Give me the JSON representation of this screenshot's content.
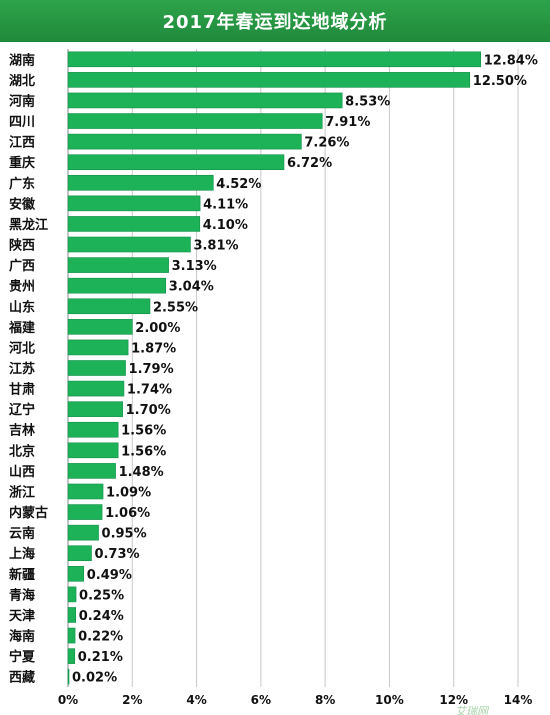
{
  "chart_data": {
    "type": "bar",
    "orientation": "horizontal",
    "title": "2017年春运到达地域分析",
    "categories": [
      "湖南",
      "湖北",
      "河南",
      "四川",
      "江西",
      "重庆",
      "广东",
      "安徽",
      "黑龙江",
      "陕西",
      "广西",
      "贵州",
      "山东",
      "福建",
      "河北",
      "江苏",
      "甘肃",
      "辽宁",
      "吉林",
      "北京",
      "山西",
      "浙江",
      "内蒙古",
      "云南",
      "上海",
      "新疆",
      "青海",
      "天津",
      "海南",
      "宁夏",
      "西藏"
    ],
    "values": [
      12.84,
      12.5,
      8.53,
      7.91,
      7.26,
      6.72,
      4.52,
      4.11,
      4.1,
      3.81,
      3.13,
      3.04,
      2.55,
      2.0,
      1.87,
      1.79,
      1.74,
      1.7,
      1.56,
      1.56,
      1.48,
      1.09,
      1.06,
      0.95,
      0.73,
      0.49,
      0.25,
      0.24,
      0.22,
      0.21,
      0.02
    ],
    "value_labels": [
      "12.84%",
      "12.50%",
      "8.53%",
      "7.91%",
      "7.26%",
      "6.72%",
      "4.52%",
      "4.11%",
      "4.10%",
      "3.81%",
      "3.13%",
      "3.04%",
      "2.55%",
      "2.00%",
      "1.87%",
      "1.79%",
      "1.74%",
      "1.70%",
      "1.56%",
      "1.56%",
      "1.48%",
      "1.09%",
      "1.06%",
      "0.95%",
      "0.73%",
      "0.49%",
      "0.25%",
      "0.24%",
      "0.22%",
      "0.21%",
      "0.02%"
    ],
    "xlim": [
      0,
      14
    ],
    "xticks": [
      "0%",
      "2%",
      "4%",
      "6%",
      "8%",
      "10%",
      "12%",
      "14%"
    ],
    "xlabel": "",
    "ylabel": "",
    "grid": true,
    "colors": {
      "bar": "#1db257",
      "bar_edge": "#12904a",
      "title_bg": "#2a9d45",
      "grid": "#c8c8c8"
    }
  },
  "watermark": "艾瑞网"
}
